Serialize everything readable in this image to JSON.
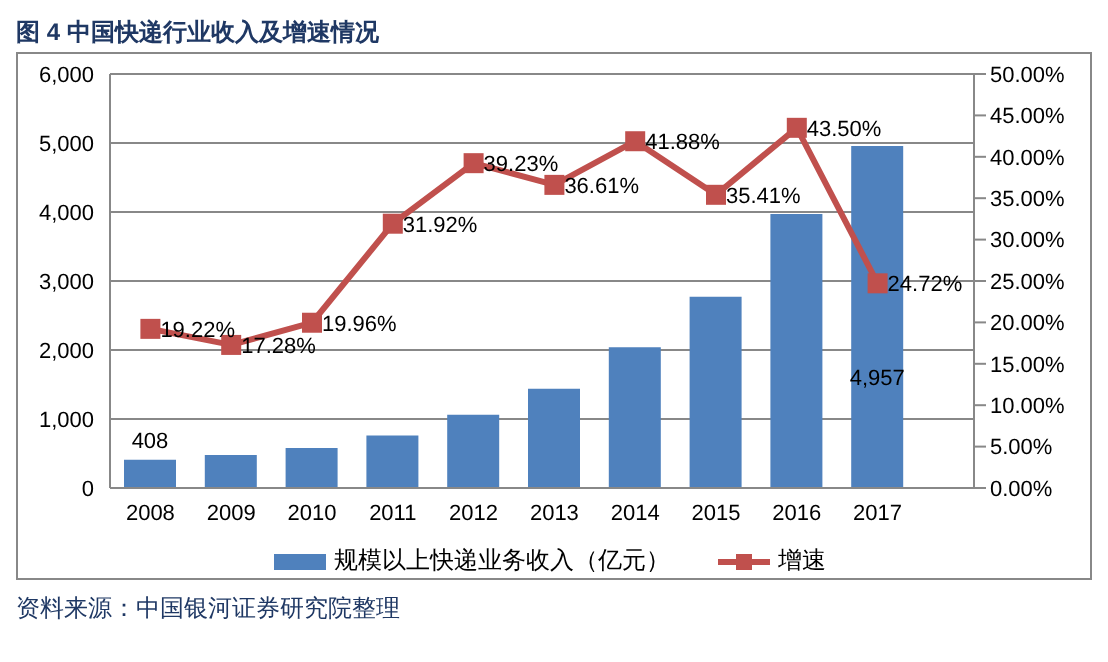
{
  "chart_data": {
    "type": "bar",
    "title": "图 4 中国快递行业收入及增速情况",
    "categories": [
      "2008",
      "2009",
      "2010",
      "2011",
      "2012",
      "2013",
      "2014",
      "2015",
      "2016",
      "2017"
    ],
    "series": [
      {
        "name": "规模以上快递业务收入（亿元）",
        "color": "#4f81bd",
        "values": [
          408,
          480,
          580,
          760,
          1060,
          1440,
          2040,
          2770,
          3970,
          4957
        ],
        "value_labels": [
          "408",
          null,
          null,
          null,
          null,
          null,
          null,
          null,
          null,
          "4,957"
        ]
      },
      {
        "name": "增速",
        "type": "line",
        "axis": "y2",
        "color": "#c0504d",
        "marker": "square",
        "values": [
          19.22,
          17.28,
          19.96,
          31.92,
          39.23,
          36.61,
          41.88,
          35.41,
          43.5,
          24.72
        ],
        "value_labels": [
          "19.22%",
          "17.28%",
          "19.96%",
          "31.92%",
          "39.23%",
          "36.61%",
          "41.88%",
          "35.41%",
          "43.50%",
          "24.72%"
        ]
      }
    ],
    "ylim": [
      0,
      6000
    ],
    "yticks": [
      0,
      {
        "value": 1000,
        "label": "1,000"
      },
      {
        "value": 2000,
        "label": "2,000"
      },
      {
        "value": 3000,
        "label": "3,000"
      },
      {
        "value": 4000,
        "label": "4,000"
      },
      {
        "value": 5000,
        "label": "5,000"
      },
      {
        "value": 6000,
        "label": "6,000"
      }
    ],
    "y2lim": [
      0,
      50
    ],
    "y2ticks": [
      {
        "value": 0,
        "label": "0.00%"
      },
      {
        "value": 5,
        "label": "5.00%"
      },
      {
        "value": 10,
        "label": "10.00%"
      },
      {
        "value": 15,
        "label": "15.00%"
      },
      {
        "value": 20,
        "label": "20.00%"
      },
      {
        "value": 25,
        "label": "25.00%"
      },
      {
        "value": 30,
        "label": "30.00%"
      },
      {
        "value": 35,
        "label": "35.00%"
      },
      {
        "value": 40,
        "label": "40.00%"
      },
      {
        "value": 45,
        "label": "45.00%"
      },
      {
        "value": 50,
        "label": "50.00%"
      }
    ],
    "grid": "y",
    "legend": "bottom",
    "annotations": [
      "资料来源：中国银河证券研究院整理"
    ]
  }
}
